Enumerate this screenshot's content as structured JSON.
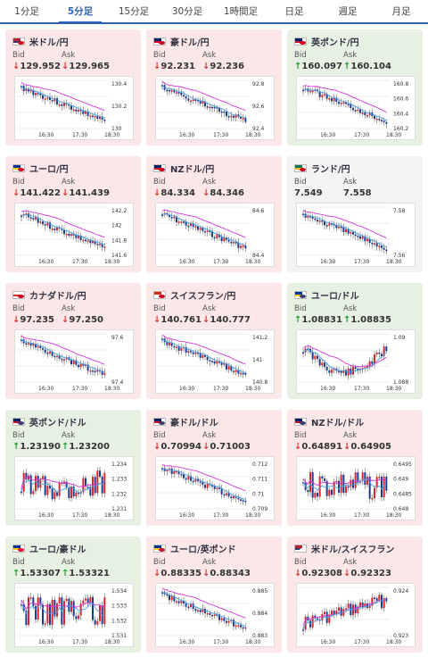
{
  "tabs": [
    "1分足",
    "5分足",
    "15分足",
    "30分足",
    "1時間足",
    "日足",
    "週足",
    "月足"
  ],
  "active_tab": 1,
  "labels": {
    "bid": "Bid",
    "ask": "Ask"
  },
  "colors": {
    "down": "#fbe7e7",
    "up": "#e6f1e4",
    "flat": "#f3f3f3",
    "candle_up": "#d9262b",
    "candle_down": "#1d3b8f",
    "ma1": "#d633d6",
    "ma2": "#4aa0e0"
  },
  "cards": [
    {
      "name": "米ドル/円",
      "flag": "us-jp",
      "state": "down",
      "bid_arrow": "↓",
      "bid": "129.952",
      "ask_arrow": "↓",
      "ask": "129.965",
      "yticks": [
        "130.4",
        "130.2",
        "130"
      ],
      "trend": "down",
      "xticks": [
        "16:30",
        "17:30",
        "18:30"
      ]
    },
    {
      "name": "豪ドル/円",
      "flag": "au-jp",
      "state": "down",
      "bid_arrow": "↓",
      "bid": "92.231",
      "ask_arrow": "↓",
      "ask": "92.236",
      "yticks": [
        "92.8",
        "92.6",
        "92.4"
      ],
      "trend": "down",
      "xticks": [
        "16:30",
        "17:30",
        "18:30"
      ]
    },
    {
      "name": "英ポンド/円",
      "flag": "gb-jp",
      "state": "up",
      "bid_arrow": "↑",
      "bid": "160.097",
      "ask_arrow": "↑",
      "ask": "160.104",
      "yticks": [
        "160.8",
        "160.6",
        "160.4",
        "160.2"
      ],
      "trend": "down",
      "xticks": [
        "16:30",
        "17:30",
        "18:30"
      ]
    },
    {
      "name": "ユーロ/円",
      "flag": "eu-jp",
      "state": "down",
      "bid_arrow": "↓",
      "bid": "141.422",
      "ask_arrow": "↓",
      "ask": "141.439",
      "yticks": [
        "142.2",
        "142",
        "141.8",
        "141.6"
      ],
      "trend": "down",
      "xticks": [
        "16:30",
        "17:30",
        "18:30"
      ]
    },
    {
      "name": "NZドル/円",
      "flag": "nz-jp",
      "state": "down",
      "bid_arrow": "↓",
      "bid": "84.334",
      "ask_arrow": "↓",
      "ask": "84.346",
      "yticks": [
        "84.6",
        "84.4"
      ],
      "trend": "down",
      "xticks": [
        "16:30",
        "17:30",
        "18:30"
      ]
    },
    {
      "name": "ランド/円",
      "flag": "za-jp",
      "state": "flat",
      "bid_arrow": "",
      "bid": "7.549",
      "ask_arrow": "",
      "ask": "7.558",
      "yticks": [
        "7.58",
        "7.56"
      ],
      "trend": "down",
      "xticks": [
        "16:30",
        "17:30",
        "18:30"
      ]
    },
    {
      "name": "カナダドル/円",
      "flag": "ca-jp",
      "state": "down",
      "bid_arrow": "↓",
      "bid": "97.235",
      "ask_arrow": "↓",
      "ask": "97.250",
      "yticks": [
        "97.6",
        "97.4"
      ],
      "trend": "down",
      "xticks": [
        "16:30",
        "17:30",
        "18:30"
      ]
    },
    {
      "name": "スイスフラン/円",
      "flag": "ch-jp",
      "state": "down",
      "bid_arrow": "↓",
      "bid": "140.761",
      "ask_arrow": "↓",
      "ask": "140.777",
      "yticks": [
        "141.2",
        "141",
        "140.8"
      ],
      "trend": "down",
      "xticks": [
        "16:30",
        "17:30",
        "18:30"
      ]
    },
    {
      "name": "ユーロ/ドル",
      "flag": "eu-us",
      "state": "up",
      "bid_arrow": "↑",
      "bid": "1.08831",
      "ask_arrow": "↑",
      "ask": "1.08835",
      "yticks": [
        "1.09",
        "1.088"
      ],
      "trend": "dip",
      "xticks": [
        "16:30",
        "17:30",
        "18:30"
      ]
    },
    {
      "name": "英ポンド/ドル",
      "flag": "gb-us",
      "state": "up",
      "bid_arrow": "↑",
      "bid": "1.23190",
      "ask_arrow": "↑",
      "ask": "1.23200",
      "yticks": [
        "1.234",
        "1.233",
        "1.232",
        "1.231"
      ],
      "trend": "flat",
      "xticks": [
        "16:30",
        "17:30",
        "18:30"
      ]
    },
    {
      "name": "豪ドル/ドル",
      "flag": "au-us",
      "state": "down",
      "bid_arrow": "↓",
      "bid": "0.70994",
      "ask_arrow": "↓",
      "ask": "0.71003",
      "yticks": [
        "0.712",
        "0.711",
        "0.71",
        "0.709"
      ],
      "trend": "down",
      "xticks": [
        "16:30",
        "17:30",
        "18:30"
      ]
    },
    {
      "name": "NZドル/ドル",
      "flag": "nz-us",
      "state": "down",
      "bid_arrow": "↓",
      "bid": "0.64891",
      "ask_arrow": "↓",
      "ask": "0.64905",
      "yticks": [
        "0.6495",
        "0.649",
        "0.6485",
        "0.648"
      ],
      "trend": "flat",
      "xticks": [
        "16:30",
        "17:30",
        "18:30"
      ]
    },
    {
      "name": "ユーロ/豪ドル",
      "flag": "eu-au",
      "state": "up",
      "bid_arrow": "↑",
      "bid": "1.53307",
      "ask_arrow": "↑",
      "ask": "1.53321",
      "yticks": [
        "1.534",
        "1.533",
        "1.532",
        "1.531"
      ],
      "trend": "flat",
      "xticks": [
        "16:30",
        "17:30",
        "18:30"
      ]
    },
    {
      "name": "ユーロ/英ポンド",
      "flag": "eu-gb",
      "state": "down",
      "bid_arrow": "↓",
      "bid": "0.88335",
      "ask_arrow": "↓",
      "ask": "0.88343",
      "yticks": [
        "0.885",
        "0.884",
        "0.883"
      ],
      "trend": "down",
      "xticks": [
        "16:30",
        "17:30",
        "18:30"
      ]
    },
    {
      "name": "米ドル/スイスフラン",
      "flag": "us-ch",
      "state": "down",
      "bid_arrow": "↓",
      "bid": "0.92308",
      "ask_arrow": "↓",
      "ask": "0.92323",
      "yticks": [
        "0.924",
        "0.923"
      ],
      "trend": "up",
      "xticks": [
        "16:30",
        "17:30",
        "18:30"
      ]
    }
  ]
}
